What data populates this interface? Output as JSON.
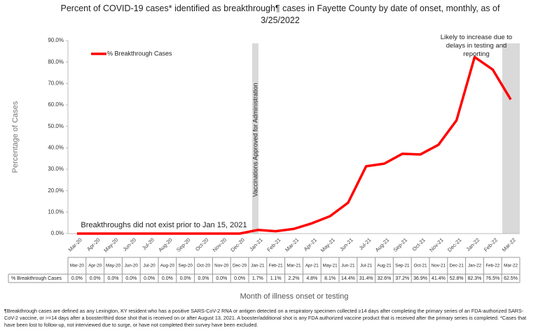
{
  "chart_data": {
    "type": "line",
    "title": "Percent of COVID-19 cases* identified as breakthrough¶ cases in Fayette County by date of onset, monthly, as of 3/25/2022",
    "x_label": "Month of illness onset or testing",
    "y_label": "Percentage of Cases",
    "categories": [
      "Mar-20",
      "Apr-20",
      "May-20",
      "Jun-20",
      "Jul-20",
      "Aug-20",
      "Sep-20",
      "Oct-20",
      "Nov-20",
      "Dec-20",
      "Jan-21",
      "Feb-21",
      "Mar-21",
      "Apr-21",
      "May-21",
      "Jun-21",
      "Jul-21",
      "Aug-21",
      "Sep-21",
      "Oct-21",
      "Nov-21",
      "Dec-21",
      "Jan-22",
      "Feb-22",
      "Mar-22"
    ],
    "series": [
      {
        "name": "% Breakthrough Cases",
        "color": "#ff0000",
        "values": [
          0.0,
          0.0,
          0.0,
          0.0,
          0.0,
          0.0,
          0.0,
          0.0,
          0.0,
          0.0,
          1.7,
          1.1,
          2.2,
          4.8,
          8.1,
          14.4,
          31.4,
          32.6,
          37.2,
          36.9,
          41.4,
          52.8,
          82.3,
          76.5,
          62.5
        ],
        "value_labels": [
          "0.0%",
          "0.0%",
          "0.0%",
          "0.0%",
          "0.0%",
          "0.0%",
          "0.0%",
          "0.0%",
          "0.0%",
          "0.0%",
          "1.7%",
          "1.1%",
          "2.2%",
          "4.8%",
          "8.1%",
          "14.4%",
          "31.4%",
          "32.6%",
          "37.2%",
          "36.9%",
          "41.4%",
          "52.8%",
          "82.3%",
          "76.5%",
          "62.5%"
        ]
      }
    ],
    "ylim": [
      0,
      90
    ],
    "yticks": [
      {
        "value": 0,
        "label": "0.0%"
      },
      {
        "value": 10,
        "label": "10.0%"
      },
      {
        "value": 20,
        "label": "20.0%"
      },
      {
        "value": 30,
        "label": "30.0%"
      },
      {
        "value": 40,
        "label": "40.0%"
      },
      {
        "value": 50,
        "label": "50.0%"
      },
      {
        "value": 60,
        "label": "60.0%"
      },
      {
        "value": 70,
        "label": "70.0%"
      },
      {
        "value": 80,
        "label": "80.0%"
      },
      {
        "value": 90,
        "label": "90.0%"
      }
    ],
    "legend": "top-left",
    "annotations": [
      "Breakthroughs did not exist prior to Jan 15, 2021",
      "Vaccinations Approved for Administration",
      "Likely to increase due to delays in testing and reporting"
    ],
    "footnote": "¶Breakthrough cases are defined as any Lexington, KY resident who has a positive SARS-CoV-2 RNA or antigen detected on a respiratory specimen collected ≥14 days after completing the primary series of an FDA-authorized SARS-CoV-2 vaccine, or >=14 days after a booster/third dose shot that is received on or after August 13, 2021.  A booster/additional shot is any FDA authorized vaccine product that is received after the primary series is completed. *Cases that have been lost to follow-up, not interviewed due to surge, or have not completed their survey have been excluded."
  }
}
